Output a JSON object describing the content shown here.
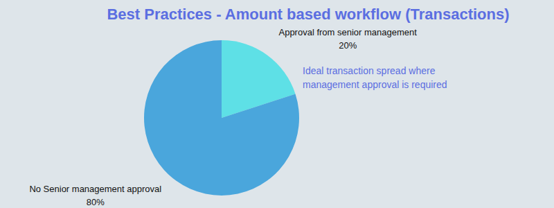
{
  "chart_data": {
    "type": "pie",
    "title": "Best Practices - Amount based workflow (Transactions)",
    "categories": [
      "Approval from senior management",
      "No Senior management approval"
    ],
    "values": [
      20,
      80
    ],
    "value_labels": [
      "20%",
      "80%"
    ],
    "data_labels": true,
    "colors": [
      "#5ee0e6",
      "#4aa6dc"
    ],
    "annotation": [
      "Ideal transaction spread where",
      "management approval is required"
    ]
  }
}
